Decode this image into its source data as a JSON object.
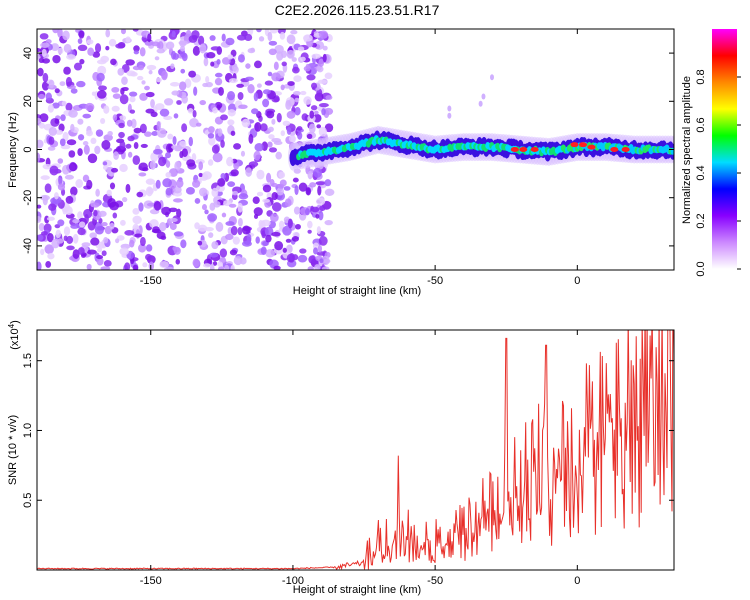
{
  "title": "C2E2.2026.115.23.51.R17",
  "chart_data": [
    {
      "type": "heatmap",
      "name": "spectrogram",
      "xlabel": "Height of straight line (km)",
      "ylabel": "Frequency (Hz)",
      "xlim": [
        -190,
        34
      ],
      "ylim": [
        -50,
        50
      ],
      "xticks": [
        -150,
        -50,
        0
      ],
      "xtick_labels": [
        "-150",
        "-50",
        "0"
      ],
      "yticks": [
        -40,
        -20,
        0,
        20,
        40
      ],
      "ytick_labels": [
        "-40",
        "-20",
        "0",
        "20",
        "40"
      ],
      "noise_region_x": [
        -190,
        -95
      ],
      "signal_track": {
        "x": [
          -100,
          -90,
          -80,
          -70,
          -60,
          -50,
          -40,
          -30,
          -20,
          -10,
          0,
          10,
          20,
          34
        ],
        "y": [
          -3,
          -1,
          1,
          4,
          2,
          0,
          1,
          1,
          0,
          -1,
          1,
          1,
          0,
          0
        ]
      },
      "colorbar": {
        "label": "Normalized spectral amplitude",
        "range": [
          0,
          1
        ],
        "ticks": [
          0,
          0.2,
          0.4,
          0.6,
          0.8
        ],
        "tick_labels": [
          "0.0",
          "0.2",
          "0.4",
          "0.6",
          "0.8"
        ],
        "colors": [
          "#ffffff",
          "#cc88ff",
          "#8800ff",
          "#0000ff",
          "#00ddff",
          "#00ff00",
          "#ffff00",
          "#ff8800",
          "#ff0000",
          "#ff00ff"
        ]
      }
    },
    {
      "type": "line",
      "name": "snr",
      "xlabel": "Height of straight line (km)",
      "ylabel": "SNR (10 * v/v)",
      "multiplier": "(x10",
      "multiplier_exp": "4",
      "multiplier_close": ")",
      "xlim": [
        -190,
        34
      ],
      "ylim": [
        0,
        1.72
      ],
      "xticks": [
        -150,
        -100,
        -50,
        0
      ],
      "xtick_labels": [
        "-150",
        "-100",
        "-50",
        "0"
      ],
      "yticks": [
        0.5,
        1.0,
        1.5
      ],
      "ytick_labels": [
        "0.5",
        "1.0",
        "1.5"
      ],
      "color": "#e8302a",
      "trend": {
        "x": [
          -190,
          -100,
          -85,
          -75,
          -70,
          -60,
          -50,
          -40,
          -30,
          -20,
          -10,
          0,
          10,
          20,
          34
        ],
        "y": [
          0.01,
          0.01,
          0.02,
          0.05,
          0.2,
          0.25,
          0.22,
          0.3,
          0.45,
          0.7,
          0.85,
          1.0,
          1.25,
          1.45,
          1.65
        ]
      },
      "spikes": [
        {
          "x": -63,
          "y": 0.82
        },
        {
          "x": -25,
          "y": 1.66
        },
        {
          "x": -11,
          "y": 1.61
        }
      ]
    }
  ]
}
